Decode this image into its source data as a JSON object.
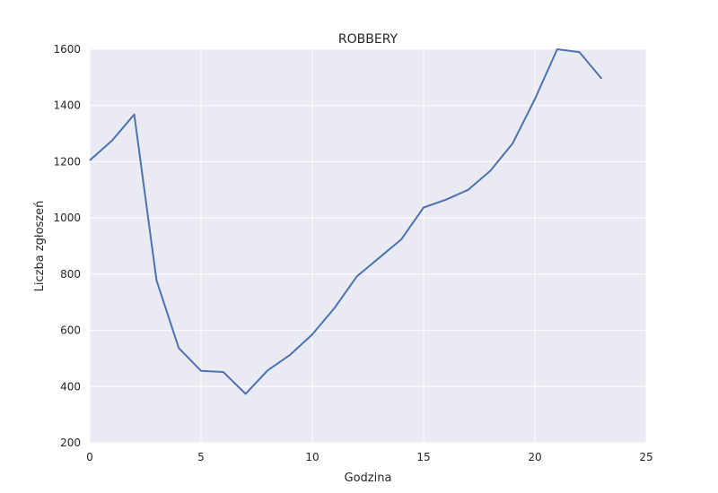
{
  "chart_data": {
    "type": "line",
    "title": "ROBBERY",
    "xlabel": "Godzina",
    "ylabel": "Liczba zgłoszeń",
    "xlim": [
      0,
      25
    ],
    "ylim": [
      200,
      1600
    ],
    "xticks": [
      0,
      5,
      10,
      15,
      20,
      25
    ],
    "yticks": [
      200,
      400,
      600,
      800,
      1000,
      1200,
      1400,
      1600
    ],
    "grid": true,
    "background": "#eaeaf2",
    "line_color": "#4c72b0",
    "series": [
      {
        "x": [
          0,
          1,
          2,
          3,
          4,
          5,
          6,
          7,
          8,
          9,
          10,
          11,
          12,
          13,
          14,
          15,
          16,
          17,
          18,
          19,
          20,
          21,
          22,
          23
        ],
        "values": [
          1205,
          1275,
          1368,
          778,
          537,
          456,
          452,
          374,
          458,
          513,
          586,
          680,
          792,
          858,
          924,
          1037,
          1065,
          1100,
          1168,
          1265,
          1423,
          1600,
          1590,
          1495
        ]
      }
    ]
  }
}
